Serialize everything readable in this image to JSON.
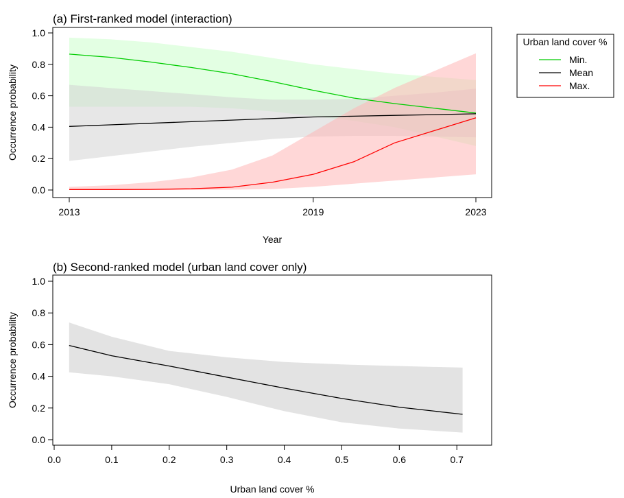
{
  "chart_data": [
    {
      "type": "line",
      "title": "(a) First-ranked model (interaction)",
      "xlabel": "Year",
      "ylabel": "Occurrence probability",
      "xlim": [
        2013,
        2023
      ],
      "ylim": [
        0,
        1
      ],
      "x_ticks": [
        {
          "value": 2013,
          "label": "2013"
        },
        {
          "value": 2019,
          "label": "2019"
        },
        {
          "value": 2023,
          "label": "2023"
        }
      ],
      "y_ticks": [
        {
          "value": 0.0,
          "label": "0.0"
        },
        {
          "value": 0.2,
          "label": "0.2"
        },
        {
          "value": 0.4,
          "label": "0.4"
        },
        {
          "value": 0.6,
          "label": "0.6"
        },
        {
          "value": 0.8,
          "label": "0.8"
        },
        {
          "value": 1.0,
          "label": "1.0"
        }
      ],
      "grid": false,
      "legend": {
        "title": "Urban land cover %",
        "position": "outside-right-top"
      },
      "x": [
        2013,
        2014,
        2015,
        2016,
        2017,
        2018,
        2019,
        2020,
        2021,
        2022,
        2023
      ],
      "series": [
        {
          "name": "Min.",
          "color": "#00cc00",
          "band_color": "#ccffcc",
          "values": [
            0.865,
            0.845,
            0.815,
            0.78,
            0.74,
            0.69,
            0.635,
            0.585,
            0.55,
            0.52,
            0.49
          ],
          "lower": [
            0.53,
            0.53,
            0.53,
            0.53,
            0.52,
            0.5,
            0.47,
            0.44,
            0.4,
            0.34,
            0.28
          ],
          "upper": [
            0.97,
            0.96,
            0.94,
            0.91,
            0.88,
            0.84,
            0.8,
            0.77,
            0.74,
            0.72,
            0.7
          ]
        },
        {
          "name": "Mean",
          "color": "#000000",
          "band_color": "#d3d3d3",
          "values": [
            0.405,
            0.415,
            0.425,
            0.435,
            0.445,
            0.455,
            0.465,
            0.47,
            0.475,
            0.48,
            0.485
          ],
          "lower": [
            0.185,
            0.215,
            0.245,
            0.275,
            0.3,
            0.325,
            0.34,
            0.345,
            0.345,
            0.34,
            0.335
          ],
          "upper": [
            0.67,
            0.65,
            0.63,
            0.61,
            0.59,
            0.575,
            0.575,
            0.58,
            0.6,
            0.62,
            0.645
          ]
        },
        {
          "name": "Max.",
          "color": "#ff0000",
          "band_color": "#ffb6b6",
          "values": [
            0.003,
            0.003,
            0.004,
            0.008,
            0.018,
            0.05,
            0.1,
            0.18,
            0.3,
            0.38,
            0.46
          ],
          "lower": [
            0.0,
            0.0,
            0.0,
            0.001,
            0.002,
            0.006,
            0.02,
            0.04,
            0.06,
            0.08,
            0.1
          ],
          "upper": [
            0.02,
            0.03,
            0.05,
            0.08,
            0.13,
            0.22,
            0.37,
            0.52,
            0.65,
            0.76,
            0.87
          ]
        }
      ]
    },
    {
      "type": "line",
      "title": "(b) Second-ranked model (urban land cover only)",
      "xlabel": "Urban land cover %",
      "ylabel": "Occurrence probability",
      "xlim": [
        0.0,
        0.72
      ],
      "ylim": [
        0,
        1
      ],
      "x_ticks": [
        {
          "value": 0.0,
          "label": "0.0"
        },
        {
          "value": 0.1,
          "label": "0.1"
        },
        {
          "value": 0.2,
          "label": "0.2"
        },
        {
          "value": 0.3,
          "label": "0.3"
        },
        {
          "value": 0.4,
          "label": "0.4"
        },
        {
          "value": 0.5,
          "label": "0.5"
        },
        {
          "value": 0.6,
          "label": "0.6"
        },
        {
          "value": 0.7,
          "label": "0.7"
        }
      ],
      "y_ticks": [
        {
          "value": 0.0,
          "label": "0.0"
        },
        {
          "value": 0.2,
          "label": "0.2"
        },
        {
          "value": 0.4,
          "label": "0.4"
        },
        {
          "value": 0.6,
          "label": "0.6"
        },
        {
          "value": 0.8,
          "label": "0.8"
        },
        {
          "value": 1.0,
          "label": "1.0"
        }
      ],
      "grid": false,
      "x": [
        0.026,
        0.1,
        0.2,
        0.3,
        0.4,
        0.5,
        0.6,
        0.71
      ],
      "series": [
        {
          "color": "#000000",
          "band_color": "#e3e3e3",
          "values": [
            0.595,
            0.53,
            0.465,
            0.395,
            0.325,
            0.26,
            0.205,
            0.16
          ],
          "lower": [
            0.425,
            0.4,
            0.35,
            0.27,
            0.18,
            0.11,
            0.07,
            0.045
          ],
          "upper": [
            0.74,
            0.65,
            0.56,
            0.52,
            0.49,
            0.475,
            0.465,
            0.455
          ]
        }
      ]
    }
  ]
}
